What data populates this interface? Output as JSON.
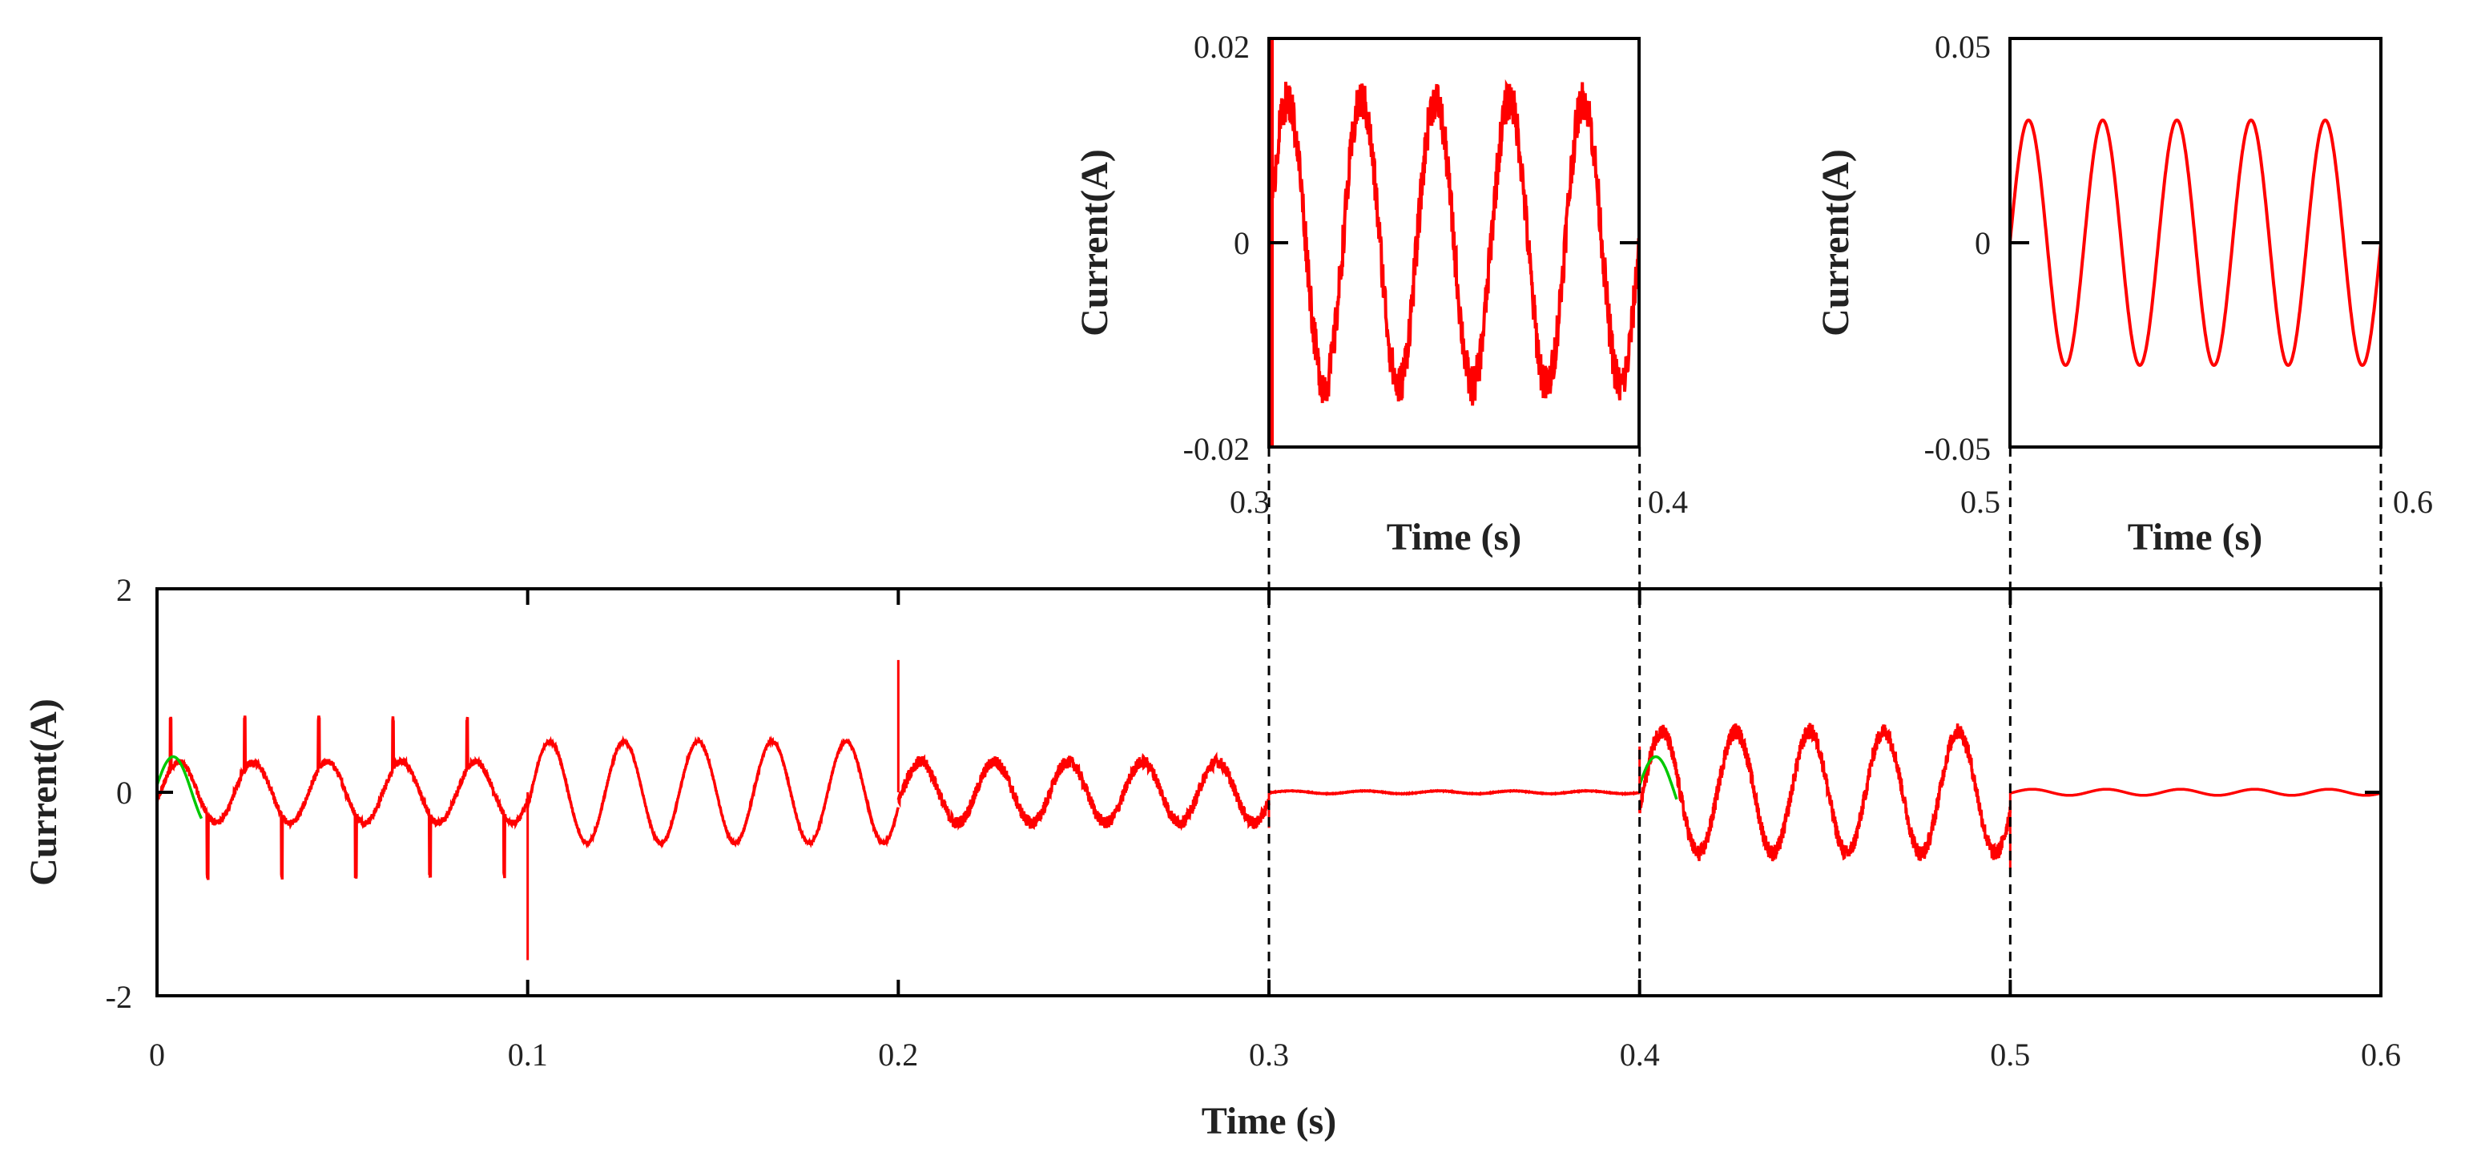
{
  "colors": {
    "trace": "#ff0000",
    "reference": "#00c800",
    "axis": "#000000",
    "background": "#ffffff"
  },
  "chart_data": [
    {
      "id": "main",
      "type": "line",
      "xlabel": "Time (s)",
      "ylabel": "Current(A)",
      "xlim": [
        0,
        0.6
      ],
      "ylim": [
        -2,
        2
      ],
      "xticks": [
        0,
        0.1,
        0.2,
        0.3,
        0.4,
        0.5,
        0.6
      ],
      "xtick_labels": [
        "0",
        "0.1",
        "0.2",
        "0.3",
        "0.4",
        "0.5",
        "0.6"
      ],
      "yticks": [
        -2,
        0,
        2
      ],
      "ytick_labels": [
        "-2",
        "0",
        "2"
      ],
      "grid": false,
      "dashed_markers_x": [
        0.3,
        0.4,
        0.5
      ],
      "frequency_hz": 50,
      "segments": [
        {
          "t_start": 0.0,
          "t_end": 0.1,
          "amplitude": 0.3,
          "noise": 0.03,
          "spikes": "commutation spikes ~0.5 up / ~0.9 down every 10 ms"
        },
        {
          "t_start": 0.1,
          "t_end": 0.2,
          "amplitude": 0.5,
          "noise": 0.01,
          "spikes": "-1.65 at t=0.1, +1.3 at t=0.2"
        },
        {
          "t_start": 0.2,
          "t_end": 0.3,
          "amplitude": 0.3,
          "noise": 0.06,
          "spikes": "none"
        },
        {
          "t_start": 0.3,
          "t_end": 0.4,
          "amplitude": 0.014,
          "noise": 0.002,
          "spikes": "none"
        },
        {
          "t_start": 0.4,
          "t_end": 0.5,
          "amplitude": 0.6,
          "noise": 0.08,
          "spikes": "none"
        },
        {
          "t_start": 0.5,
          "t_end": 0.6,
          "amplitude": 0.03,
          "noise": 0.0,
          "spikes": "none"
        }
      ],
      "series": [
        {
          "values_note": "reference sine visible at start of segments 1 and 5",
          "role": "reference"
        },
        {
          "values_note": "measured current",
          "role": "measured"
        }
      ]
    },
    {
      "id": "inset-1",
      "type": "line",
      "xlabel": "Time (s)",
      "ylabel": "Current(A)",
      "xlim": [
        0.3,
        0.4
      ],
      "ylim": [
        -0.02,
        0.02
      ],
      "xtick_labels": [
        "0.3",
        "0.4"
      ],
      "ytick_labels": [
        "-0.02",
        "0",
        "0.02"
      ],
      "frequency_hz": 50,
      "amplitude": 0.014,
      "noise": 0.002
    },
    {
      "id": "inset-2",
      "type": "line",
      "xlabel": "Time (s)",
      "ylabel": "Current(A)",
      "xlim": [
        0.5,
        0.6
      ],
      "ylim": [
        -0.05,
        0.05
      ],
      "xtick_labels": [
        "0.5",
        "0.6"
      ],
      "ytick_labels": [
        "-0.05",
        "0",
        "0.05"
      ],
      "frequency_hz": 50,
      "amplitude": 0.03,
      "noise": 0.0
    }
  ]
}
